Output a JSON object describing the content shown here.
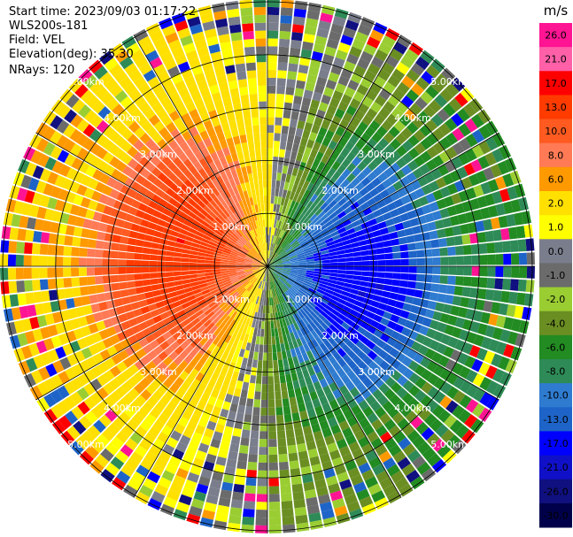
{
  "header": {
    "start_time": "Start time: 2023/09/03 01:17:22",
    "site": "WLS200s-181",
    "field": "Field: VEL",
    "elevation": "Elevation(deg): 35.30",
    "nrays": "NRays: 120"
  },
  "chart_data": {
    "type": "heatmap",
    "projection": "polar-ppi",
    "range_rings": [
      {
        "value": 1,
        "label": "1.00km"
      },
      {
        "value": 2,
        "label": "2.00km"
      },
      {
        "value": 3,
        "label": "3.00km"
      },
      {
        "value": 4,
        "label": "4.00km"
      },
      {
        "value": 5,
        "label": "5.00km"
      }
    ],
    "max_range_km": 5.05,
    "n_rays": 120,
    "colorbar": {
      "unit": "m/s",
      "ticks": [
        "26.0",
        "21.0",
        "17.0",
        "13.0",
        "10.0",
        "8.0",
        "6.0",
        "2.0",
        "1.0",
        "0.0",
        "-1.0",
        "-2.0",
        "-4.0",
        "-6.0",
        "-8.0",
        "-10.0",
        "-13.0",
        "-17.0",
        "-21.0",
        "-26.0",
        "-30.0"
      ],
      "colors": [
        "#ff1493",
        "#ff60a8",
        "#ff0000",
        "#ff3b00",
        "#ff5a20",
        "#ff7a55",
        "#ff9900",
        "#ffe000",
        "#ffff00",
        "#7a7e8c",
        "#6b6b6b",
        "#9acd32",
        "#6b8e23",
        "#228b22",
        "#2e8b57",
        "#2e7bd0",
        "#1e64c8",
        "#0000ff",
        "#1010c8",
        "#101080",
        "#00004a"
      ]
    }
  }
}
